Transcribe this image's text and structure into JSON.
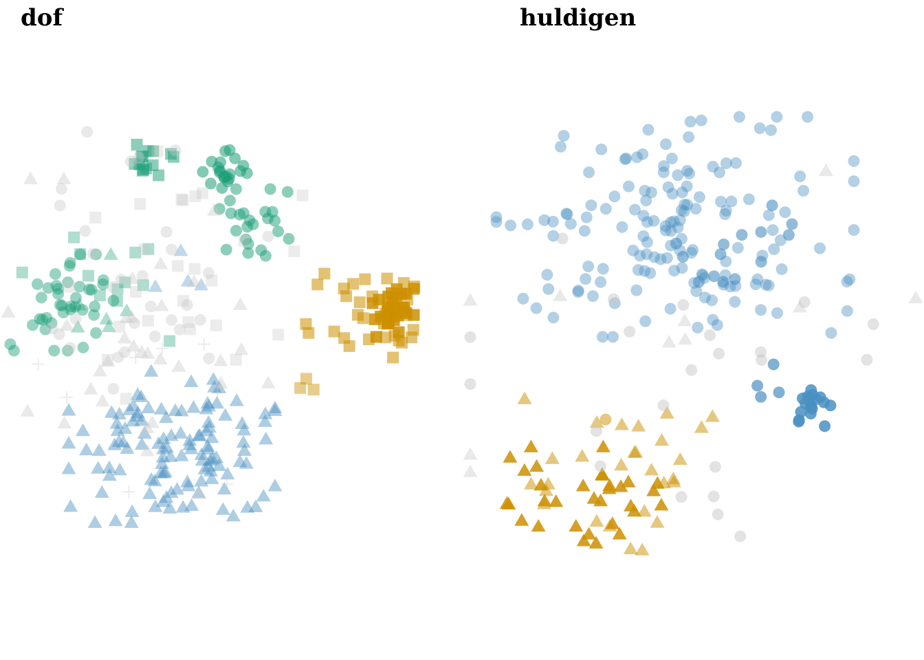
{
  "colors": {
    "green": "#1b9e77",
    "gold": "#cc8f00",
    "blue": "#4a90c2",
    "grey": "#c8c8c8"
  },
  "chart_data": [
    {
      "type": "scatter",
      "title": "dof",
      "xlim": [
        0,
        672
      ],
      "ylim": [
        0,
        960
      ],
      "grid": false,
      "legend": "none",
      "clusters": [
        {
          "color": "green",
          "shape": "circle",
          "cx": 330,
          "cy": 250,
          "rx": 35,
          "ry": 35,
          "n": 20,
          "opacity": 0.55,
          "seed": 1
        },
        {
          "color": "green",
          "shape": "circle",
          "cx": 365,
          "cy": 330,
          "rx": 55,
          "ry": 55,
          "n": 24,
          "opacity": 0.5,
          "seed": 2
        },
        {
          "color": "green",
          "shape": "circle",
          "cx": 90,
          "cy": 440,
          "rx": 75,
          "ry": 70,
          "n": 40,
          "opacity": 0.45,
          "seed": 3
        },
        {
          "color": "green",
          "shape": "square",
          "cx": 230,
          "cy": 230,
          "rx": 45,
          "ry": 25,
          "n": 14,
          "opacity": 0.5,
          "seed": 4
        },
        {
          "color": "green",
          "shape": "square",
          "cx": 150,
          "cy": 400,
          "rx": 140,
          "ry": 100,
          "n": 12,
          "opacity": 0.35,
          "seed": 5
        },
        {
          "color": "green",
          "shape": "triangle",
          "cx": 180,
          "cy": 450,
          "rx": 110,
          "ry": 80,
          "n": 6,
          "opacity": 0.35,
          "seed": 6
        },
        {
          "color": "gold",
          "shape": "square",
          "cx": 572,
          "cy": 455,
          "rx": 30,
          "ry": 35,
          "n": 30,
          "opacity": 0.85,
          "seed": 7
        },
        {
          "color": "gold",
          "shape": "square",
          "cx": 545,
          "cy": 455,
          "rx": 100,
          "ry": 80,
          "n": 32,
          "opacity": 0.55,
          "seed": 8
        },
        {
          "color": "gold",
          "shape": "square",
          "cx": 450,
          "cy": 560,
          "rx": 20,
          "ry": 40,
          "n": 3,
          "opacity": 0.45,
          "seed": 9
        },
        {
          "color": "blue",
          "shape": "triangle",
          "cx": 250,
          "cy": 650,
          "rx": 150,
          "ry": 110,
          "n": 120,
          "opacity": 0.45,
          "seed": 10
        },
        {
          "color": "blue",
          "shape": "triangle",
          "cx": 280,
          "cy": 400,
          "rx": 100,
          "ry": 60,
          "n": 4,
          "opacity": 0.35,
          "seed": 11
        },
        {
          "color": "grey",
          "shape": "circle",
          "cx": 200,
          "cy": 400,
          "rx": 190,
          "ry": 230,
          "n": 30,
          "opacity": 0.4,
          "seed": 12
        },
        {
          "color": "grey",
          "shape": "square",
          "cx": 230,
          "cy": 400,
          "rx": 210,
          "ry": 180,
          "n": 26,
          "opacity": 0.35,
          "seed": 13
        },
        {
          "color": "grey",
          "shape": "triangle",
          "cx": 200,
          "cy": 500,
          "rx": 190,
          "ry": 240,
          "n": 32,
          "opacity": 0.4,
          "seed": 14
        },
        {
          "color": "grey",
          "shape": "plus",
          "cx": 180,
          "cy": 500,
          "rx": 150,
          "ry": 220,
          "n": 8,
          "opacity": 0.35,
          "seed": 15
        }
      ]
    },
    {
      "type": "scatter",
      "title": "huldigen",
      "xlim": [
        0,
        672
      ],
      "ylim": [
        0,
        960
      ],
      "grid": false,
      "legend": "none",
      "clusters": [
        {
          "color": "blue",
          "shape": "circle",
          "cx": 310,
          "cy": 330,
          "rx": 260,
          "ry": 160,
          "n": 150,
          "opacity": 0.42,
          "seed": 21
        },
        {
          "color": "blue",
          "shape": "circle",
          "cx": 360,
          "cy": 350,
          "rx": 120,
          "ry": 60,
          "n": 14,
          "opacity": 0.6,
          "seed": 22
        },
        {
          "color": "blue",
          "shape": "circle",
          "cx": 512,
          "cy": 592,
          "rx": 30,
          "ry": 30,
          "n": 18,
          "opacity": 0.85,
          "seed": 23
        },
        {
          "color": "blue",
          "shape": "circle",
          "cx": 440,
          "cy": 570,
          "rx": 45,
          "ry": 40,
          "n": 4,
          "opacity": 0.7,
          "seed": 24
        },
        {
          "color": "gold",
          "shape": "triangle",
          "cx": 160,
          "cy": 720,
          "rx": 130,
          "ry": 70,
          "n": 32,
          "opacity": 0.85,
          "seed": 25
        },
        {
          "color": "gold",
          "shape": "triangle",
          "cx": 220,
          "cy": 690,
          "rx": 160,
          "ry": 110,
          "n": 28,
          "opacity": 0.5,
          "seed": 26
        },
        {
          "color": "gold",
          "shape": "circle",
          "cx": 205,
          "cy": 612,
          "rx": 5,
          "ry": 5,
          "n": 1,
          "opacity": 0.5,
          "seed": 27
        },
        {
          "color": "grey",
          "shape": "circle",
          "cx": 300,
          "cy": 560,
          "rx": 300,
          "ry": 250,
          "n": 22,
          "opacity": 0.5,
          "seed": 28
        },
        {
          "color": "grey",
          "shape": "triangle",
          "cx": 340,
          "cy": 500,
          "rx": 330,
          "ry": 330,
          "n": 10,
          "opacity": 0.4,
          "seed": 29
        }
      ]
    }
  ]
}
